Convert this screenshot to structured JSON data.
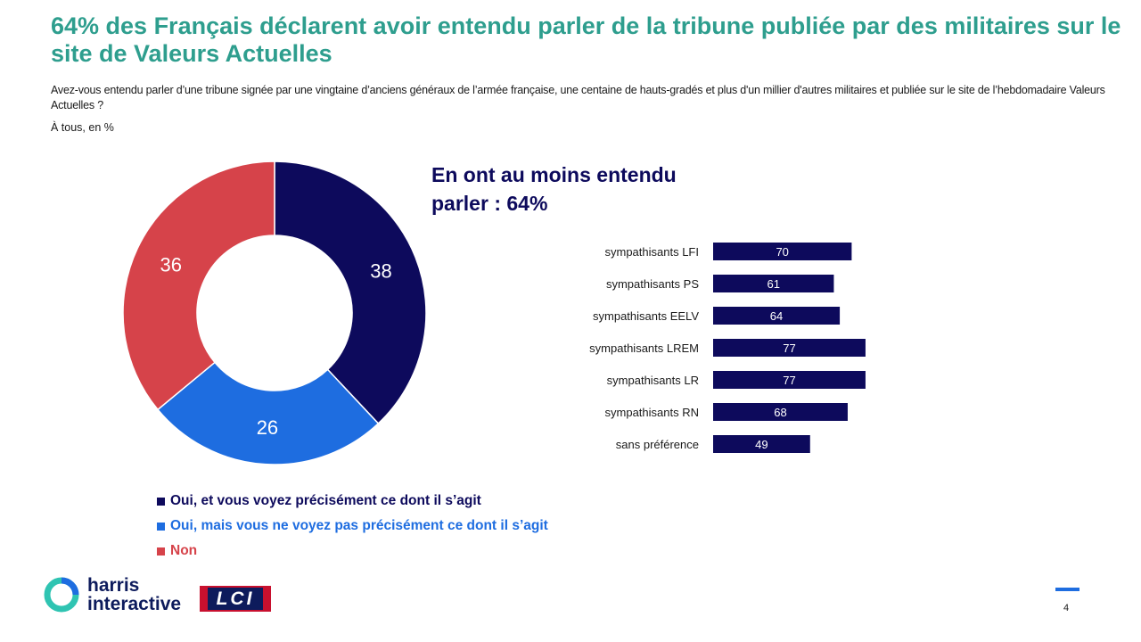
{
  "header": {
    "title": "64% des Français déclarent avoir entendu parler de la tribune publiée par des militaires sur le site de Valeurs Actuelles",
    "question": "Avez-vous entendu parler d’une tribune signée par une vingtaine d’anciens généraux de l’armée française, une centaine de hauts-gradés et plus d'un millier d'autres militaires et publiée sur le site de l’hebdomadaire Valeurs Actuelles ?",
    "base": "À tous, en %"
  },
  "highlight": {
    "line1": "En ont au moins entendu",
    "line2": "parler : 64%"
  },
  "colors": {
    "title": "#2e9e8e",
    "dark_navy": "#0d0a5c",
    "blue": "#1e6de0",
    "red": "#d6434a"
  },
  "chart_data": [
    {
      "type": "pie",
      "donut": true,
      "start_angle_deg": -90,
      "direction": "clockwise",
      "slices": [
        {
          "label": "Oui, et vous voyez précisément ce dont il s’agit",
          "value": 38,
          "color": "#0d0a5c"
        },
        {
          "label": "Oui, mais vous ne voyez pas précisément ce dont il s’agit",
          "value": 26,
          "color": "#1e6de0"
        },
        {
          "label": "Non",
          "value": 36,
          "color": "#d6434a"
        }
      ],
      "legend_position": "bottom"
    },
    {
      "type": "bar",
      "orientation": "horizontal",
      "categories": [
        "sympathisants LFI",
        "sympathisants PS",
        "sympathisants EELV",
        "sympathisants LREM",
        "sympathisants LR",
        "sympathisants RN",
        "sans préférence"
      ],
      "values": [
        70,
        61,
        64,
        77,
        77,
        68,
        49
      ],
      "color": "#0d0a5c",
      "xlim": [
        0,
        100
      ],
      "grid": false
    }
  ],
  "footer": {
    "brand_line1": "harris",
    "brand_line2": "interactive",
    "partner": "LCI",
    "page_number": "4"
  }
}
